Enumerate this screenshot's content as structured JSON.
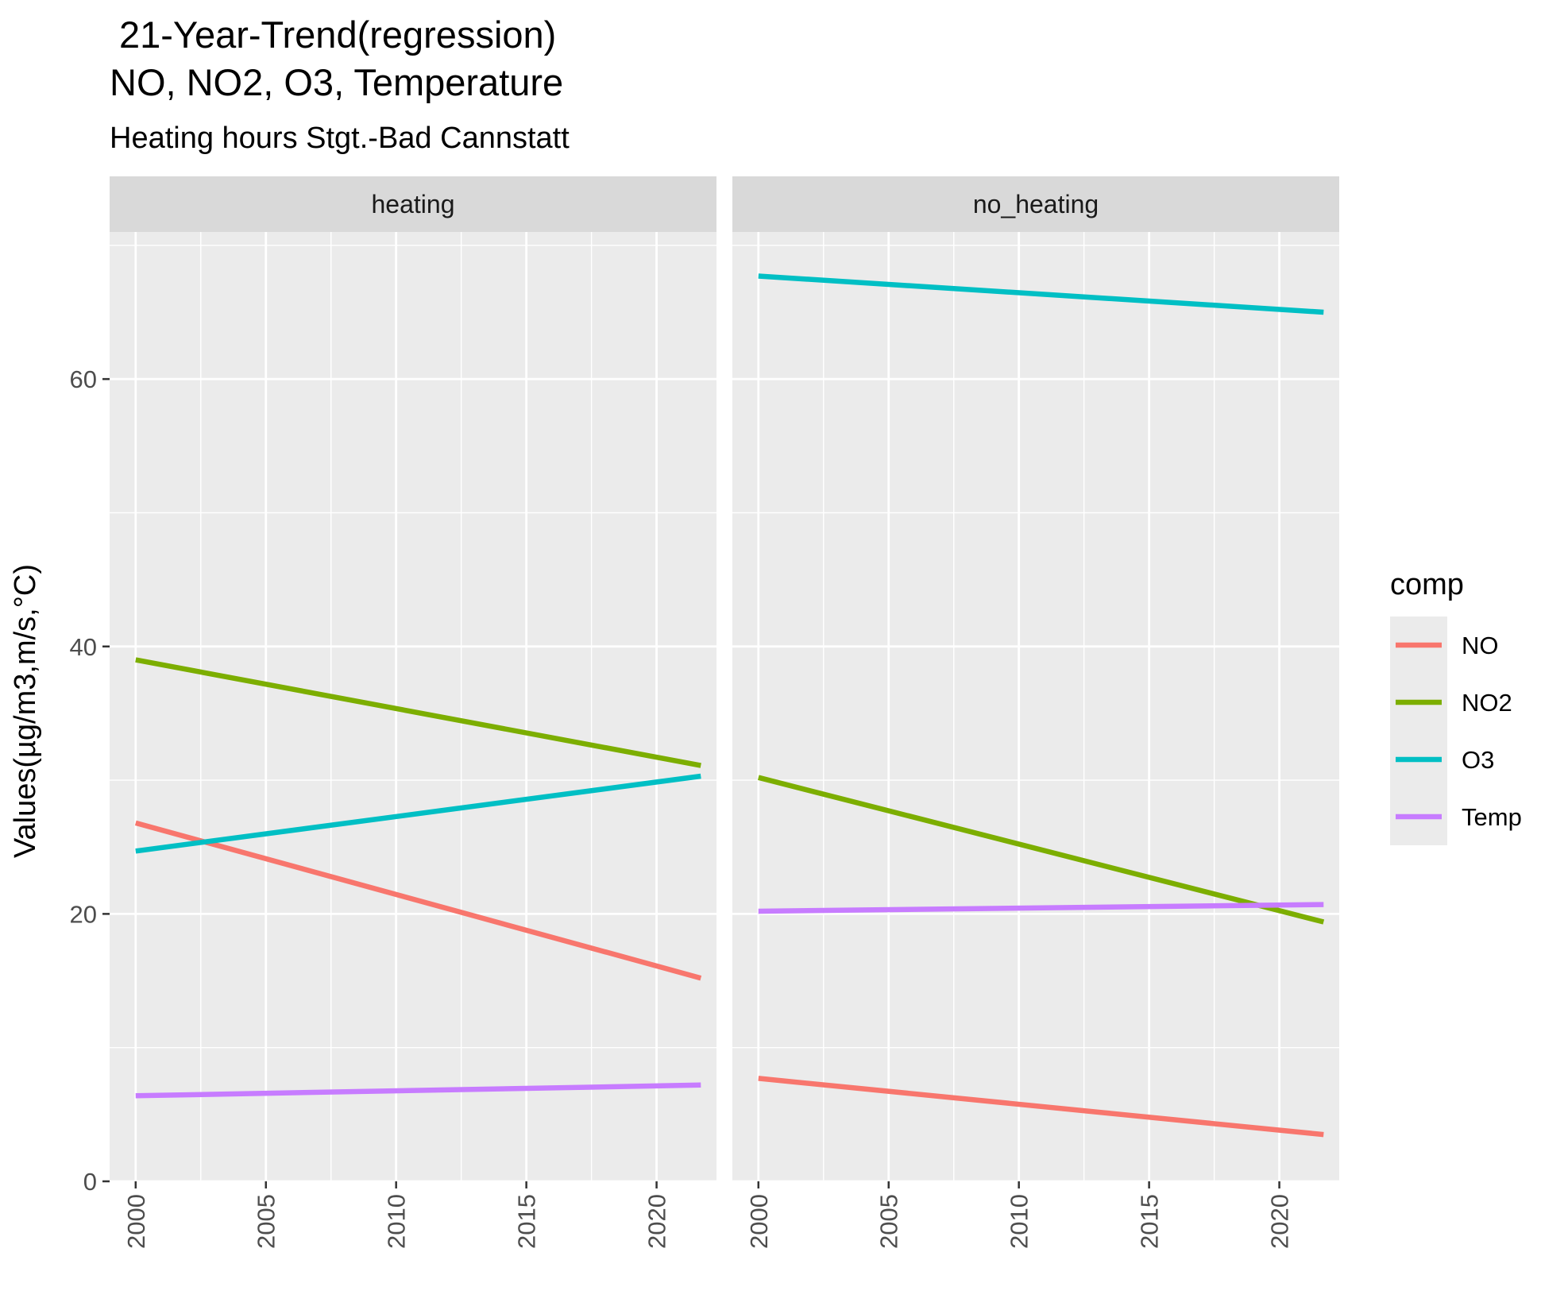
{
  "chart_data": {
    "type": "line",
    "title": "21-Year-Trend(regression)",
    "title_line2": "NO, NO2, O3, Temperature",
    "subtitle": "Heating hours Stgt.-Bad Cannstatt",
    "xlabel": "",
    "ylabel": "Values(µg/m3,m/s,°C)",
    "xlim": [
      1999,
      2022.3
    ],
    "ylim": [
      0,
      71
    ],
    "x_ticks": [
      2000,
      2005,
      2010,
      2015,
      2020
    ],
    "y_ticks": [
      0,
      20,
      40,
      60
    ],
    "grid": true,
    "legend": {
      "title": "comp",
      "position": "right",
      "entries": [
        {
          "name": "NO",
          "color": "#F8766D"
        },
        {
          "name": "NO2",
          "color": "#7CAE00"
        },
        {
          "name": "O3",
          "color": "#00BFC4"
        },
        {
          "name": "Temp",
          "color": "#C77CFF"
        }
      ]
    },
    "panels": [
      {
        "label": "heating",
        "series": [
          {
            "name": "NO",
            "x": [
              2000,
              2021.7
            ],
            "values": [
              26.8,
              15.2
            ]
          },
          {
            "name": "NO2",
            "x": [
              2000,
              2021.7
            ],
            "values": [
              39.0,
              31.1
            ]
          },
          {
            "name": "O3",
            "x": [
              2000,
              2021.7
            ],
            "values": [
              24.7,
              30.3
            ]
          },
          {
            "name": "Temp",
            "x": [
              2000,
              2021.7
            ],
            "values": [
              6.4,
              7.2
            ]
          }
        ]
      },
      {
        "label": "no_heating",
        "series": [
          {
            "name": "NO",
            "x": [
              2000,
              2021.7
            ],
            "values": [
              7.7,
              3.5
            ]
          },
          {
            "name": "NO2",
            "x": [
              2000,
              2021.7
            ],
            "values": [
              30.2,
              19.4
            ]
          },
          {
            "name": "O3",
            "x": [
              2000,
              2021.7
            ],
            "values": [
              67.7,
              65.0
            ]
          },
          {
            "name": "Temp",
            "x": [
              2000,
              2021.7
            ],
            "values": [
              20.2,
              20.7
            ]
          }
        ]
      }
    ]
  }
}
